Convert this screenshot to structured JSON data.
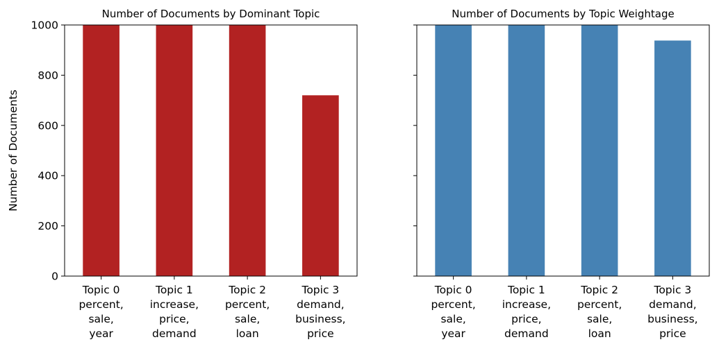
{
  "chart_data": [
    {
      "type": "bar",
      "title": "Number of Documents by Dominant Topic",
      "ylabel": "Number of Documents",
      "xlabel": "",
      "ylim": [
        0,
        1000
      ],
      "yticks": [
        0,
        200,
        400,
        600,
        800,
        1000
      ],
      "categories": [
        [
          "Topic 0",
          "percent,",
          "sale,",
          "year"
        ],
        [
          "Topic 1",
          "increase,",
          "price,",
          "demand"
        ],
        [
          "Topic 2",
          "percent,",
          "sale,",
          "loan"
        ],
        [
          "Topic 3",
          "demand,",
          "business,",
          "price"
        ]
      ],
      "values": [
        1000,
        1000,
        1000,
        720
      ],
      "color": "#b22222",
      "grid": false
    },
    {
      "type": "bar",
      "title": "Number of Documents by Topic Weightage",
      "ylabel": "",
      "xlabel": "",
      "ylim": [
        0,
        1000
      ],
      "yticks": [
        0,
        200,
        400,
        600,
        800,
        1000
      ],
      "show_ytick_labels": false,
      "categories": [
        [
          "Topic 0",
          "percent,",
          "sale,",
          "year"
        ],
        [
          "Topic 1",
          "increase,",
          "price,",
          "demand"
        ],
        [
          "Topic 2",
          "percent,",
          "sale,",
          "loan"
        ],
        [
          "Topic 3",
          "demand,",
          "business,",
          "price"
        ]
      ],
      "values": [
        1000,
        1000,
        1000,
        938
      ],
      "color": "#4682b4",
      "grid": false
    }
  ]
}
